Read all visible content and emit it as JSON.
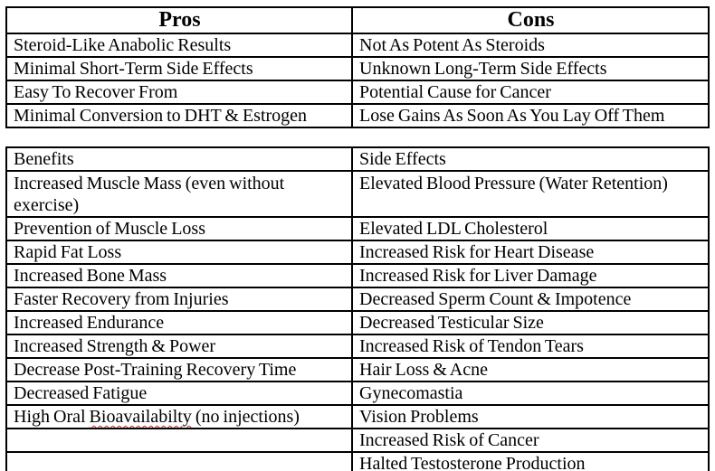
{
  "page": {
    "background_color": "#ffffff",
    "table_border_color": "#000000",
    "text_color": "#000000",
    "spellcheck_underline_color": "#cc2b2b"
  },
  "pros_cons_table": {
    "headers": [
      "Pros",
      "Cons"
    ],
    "rows": [
      [
        "Steroid-Like Anabolic Results",
        "Not As Potent As Steroids"
      ],
      [
        "Minimal Short-Term Side Effects",
        "Unknown Long-Term Side Effects"
      ],
      [
        "Easy To Recover From",
        "Potential Cause for Cancer"
      ],
      [
        "Minimal Conversion to DHT & Estrogen",
        "Lose Gains As Soon As You Lay Off Them"
      ]
    ]
  },
  "benefits_side_effects_table": {
    "headers": [
      "Benefits",
      "Side Effects"
    ],
    "rows": [
      [
        "Increased Muscle Mass (even without exercise)",
        "Elevated Blood Pressure (Water Retention)"
      ],
      [
        "Prevention of Muscle Loss",
        "Elevated LDL Cholesterol"
      ],
      [
        "Rapid Fat Loss",
        "Increased Risk for Heart Disease"
      ],
      [
        "Increased Bone Mass",
        "Increased Risk for Liver Damage"
      ],
      [
        "Faster Recovery from Injuries",
        "Decreased Sperm Count & Impotence"
      ],
      [
        "Increased Endurance",
        "Decreased Testicular Size"
      ],
      [
        "Increased Strength & Power",
        "Increased Risk of Tendon Tears"
      ],
      [
        "Decrease Post-Training Recovery Time",
        "Hair Loss & Acne"
      ],
      [
        "Decreased Fatigue",
        "Gynecomastia"
      ],
      [
        {
          "prefix": "High Oral ",
          "misspelled_word": "Bioavailabilty",
          "suffix": " (no injections)"
        },
        "Vision Problems"
      ],
      [
        "",
        "Increased Risk of Cancer"
      ],
      [
        "",
        "Halted Testosterone Production"
      ]
    ]
  }
}
